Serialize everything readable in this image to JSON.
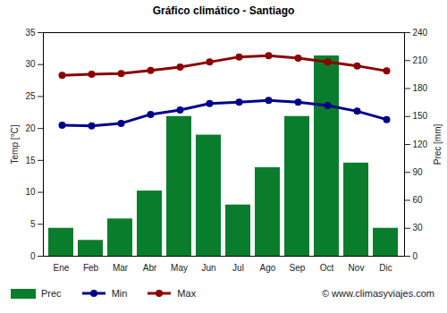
{
  "chart_data": {
    "type": "bar",
    "title": "Gráfico climático - Santiago",
    "categories": [
      "Ene",
      "Feb",
      "Mar",
      "Abr",
      "May",
      "Jun",
      "Jul",
      "Ago",
      "Sep",
      "Oct",
      "Nov",
      "Dic"
    ],
    "series": [
      {
        "name": "Prec",
        "type": "bar",
        "axis": "y2",
        "color": "#0a7d2c",
        "values": [
          30,
          17,
          40,
          70,
          150,
          130,
          55,
          95,
          150,
          215,
          100,
          30
        ]
      },
      {
        "name": "Min",
        "type": "line",
        "marker": "circle",
        "color": "#00008b",
        "values": [
          20.5,
          20.4,
          20.8,
          22.2,
          22.9,
          23.9,
          24.1,
          24.4,
          24.1,
          23.6,
          22.7,
          21.4
        ]
      },
      {
        "name": "Max",
        "type": "line",
        "marker": "circle",
        "color": "#8b0000",
        "values": [
          28.3,
          28.5,
          28.6,
          29.1,
          29.6,
          30.4,
          31.2,
          31.4,
          31.0,
          30.4,
          29.8,
          29.0
        ]
      }
    ],
    "y_label": "Temp [°C]",
    "ylim": [
      0,
      35
    ],
    "yticks": [
      0,
      5,
      10,
      15,
      20,
      25,
      30,
      35
    ],
    "y2_label": "Prec [mm]",
    "y2lim": [
      0,
      240
    ],
    "y2ticks": [
      0,
      30,
      60,
      90,
      120,
      150,
      180,
      210,
      240
    ],
    "grid": false,
    "legend": "bottom",
    "annotations": [
      "© www.climasyviajes.com"
    ]
  }
}
